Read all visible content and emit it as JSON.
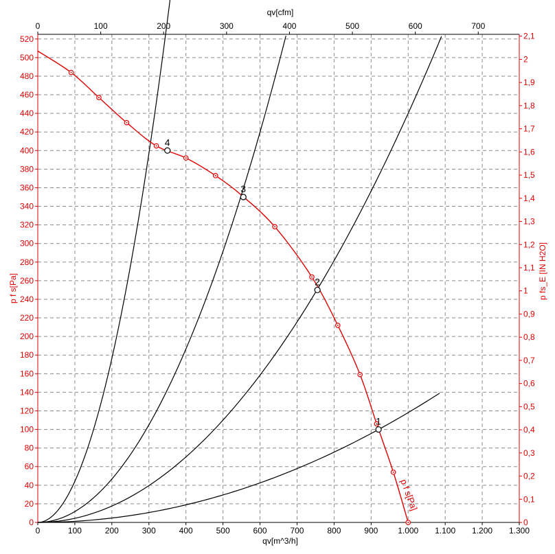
{
  "chart_data": {
    "type": "line",
    "grid": true,
    "axes": {
      "bottom": {
        "label": "qv[m^3/h]",
        "min": 0,
        "max": 1300,
        "tick_step": 100,
        "tick_labels": [
          "0",
          "100",
          "200",
          "300",
          "400",
          "500",
          "600",
          "700",
          "800",
          "900",
          "1.000",
          "1.100",
          "1.200",
          "1.300"
        ]
      },
      "top": {
        "label": "qv[cfm]",
        "min": 0,
        "max": 765.2,
        "tick_step": 100,
        "tick_labels": [
          "0",
          "100",
          "200",
          "300",
          "400",
          "500",
          "600",
          "700"
        ]
      },
      "left": {
        "label": "p f s[Pa]",
        "min": 0,
        "max": 525,
        "tick_step": 20,
        "tick_labels": [
          "0",
          "20",
          "40",
          "60",
          "80",
          "100",
          "120",
          "140",
          "160",
          "180",
          "200",
          "220",
          "240",
          "260",
          "280",
          "300",
          "320",
          "340",
          "360",
          "380",
          "400",
          "420",
          "440",
          "460",
          "480",
          "500",
          "520"
        ]
      },
      "right": {
        "label": "p fs_E [IN H2O]",
        "min": 0,
        "max": 2.108,
        "tick_step": 0.1,
        "tick_labels": [
          "0",
          "0,1",
          "0,2",
          "0,3",
          "0,4",
          "0,5",
          "0,6",
          "0,7",
          "0,8",
          "0,9",
          "1",
          "1,1",
          "1,2",
          "1,3",
          "1,4",
          "1,5",
          "1,6",
          "1,7",
          "1,8",
          "1,9",
          "2",
          "2,1"
        ]
      }
    },
    "series": [
      {
        "name": "p f s[Pa]",
        "color": "#e00000",
        "x": [
          0,
          90,
          165,
          240,
          320,
          400,
          480,
          550,
          640,
          740,
          810,
          870,
          915,
          960,
          1000
        ],
        "y": [
          507,
          484,
          457,
          430,
          405,
          392,
          373,
          352,
          318,
          264,
          212,
          159,
          106,
          54,
          0
        ]
      },
      {
        "color": "#000000",
        "x": [
          0,
          50,
          100,
          150,
          200,
          250,
          300,
          350,
          395
        ],
        "y": [
          0,
          15,
          63,
          141,
          251,
          392,
          564,
          768,
          503
        ]
      },
      {
        "color": "#000000",
        "x": [
          0,
          100,
          200,
          300,
          400,
          500,
          560,
          610
        ],
        "y": [
          0,
          30,
          118,
          266,
          472,
          737,
          503,
          503
        ]
      },
      {
        "color": "#000000",
        "x": [
          0,
          100,
          200,
          300,
          400,
          500,
          600,
          700,
          755,
          850,
          950,
          1090
        ],
        "y": [
          0,
          11,
          44,
          99,
          176,
          275,
          396,
          538,
          250,
          318,
          397,
          517
        ]
      },
      {
        "color": "#000000",
        "x": [
          0,
          100,
          200,
          300,
          400,
          500,
          600,
          700,
          800,
          920,
          1000,
          1085
        ],
        "y": [
          0,
          1,
          5,
          11,
          19,
          30,
          43,
          58,
          76,
          100,
          118,
          139
        ]
      }
    ],
    "curves": [
      {
        "color": "#000000",
        "k": 0.004409,
        "x_end": 395
      },
      {
        "color": "#000000",
        "k": 0.001166,
        "x_end": 670
      },
      {
        "color": "#000000",
        "k": 0.00044,
        "x_end": 1090
      },
      {
        "color": "#000000",
        "k": 0.0001181,
        "x_end": 1085
      }
    ],
    "fan_curve": {
      "name": "p f s[Pa]",
      "color": "#e00000",
      "x": [
        0,
        90,
        165,
        240,
        320,
        400,
        480,
        550,
        640,
        740,
        810,
        870,
        915,
        960,
        1000
      ],
      "y": [
        507,
        484,
        457,
        430,
        405,
        392,
        373,
        352,
        318,
        264,
        212,
        159,
        106,
        54,
        0
      ],
      "markers_x": [
        90,
        165,
        240,
        320,
        400,
        480,
        640,
        740,
        810,
        870,
        915,
        960,
        1000
      ],
      "markers_y": [
        484,
        457,
        430,
        405,
        392,
        373,
        318,
        264,
        212,
        159,
        106,
        54,
        0
      ]
    },
    "operating_points": [
      {
        "label": "1",
        "x": 920,
        "y": 100
      },
      {
        "label": "2",
        "x": 755,
        "y": 250
      },
      {
        "label": "3",
        "x": 555,
        "y": 350
      },
      {
        "label": "4",
        "x": 350,
        "y": 400
      }
    ]
  }
}
